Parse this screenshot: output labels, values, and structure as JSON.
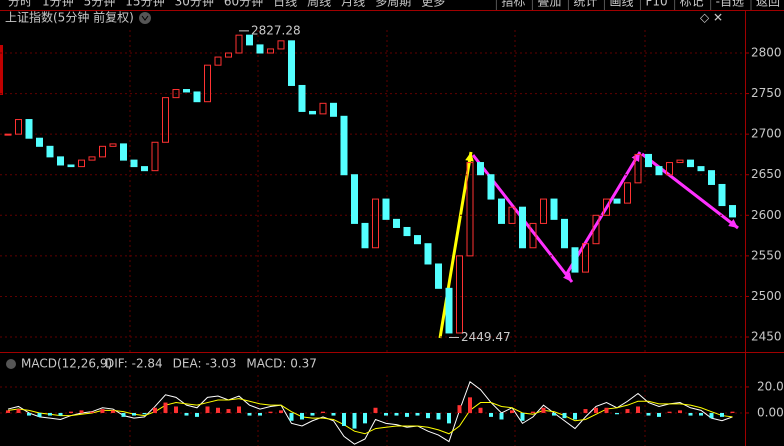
{
  "toolbar": {
    "tabs": [
      "分时",
      "1分钟",
      "5分钟",
      "15分钟",
      "30分钟",
      "60分钟",
      "日线",
      "周线",
      "月线",
      "多周期",
      "更多"
    ],
    "buttons": [
      "指标",
      "叠加",
      "统计",
      "画线",
      "F10",
      "标记",
      "-自选",
      "返回"
    ]
  },
  "chart_data": [
    {
      "type": "candlestick",
      "title": "上证指数(5分钟 前复权)",
      "up_color": "#ff3232",
      "down_color": "#54ffff",
      "grid": true,
      "ylim": [
        2434,
        2853
      ],
      "yticks": [
        2450,
        2500,
        2550,
        2600,
        2650,
        2700,
        2750,
        2800
      ],
      "annotations": [
        {
          "value": 2827.28,
          "label": "2827.28"
        },
        {
          "value": 2449.47,
          "label": "2449.47"
        }
      ],
      "values": [
        2700,
        2718,
        2695,
        2685,
        2672,
        2662,
        2660,
        2668,
        2672,
        2685,
        2688,
        2668,
        2660,
        2655,
        2690,
        2745,
        2755,
        2752,
        2740,
        2785,
        2795,
        2800,
        2822,
        2810,
        2800,
        2805,
        2815,
        2760,
        2728,
        2725,
        2738,
        2722,
        2650,
        2590,
        2560,
        2620,
        2595,
        2585,
        2575,
        2565,
        2540,
        2510,
        2455,
        2550,
        2665,
        2650,
        2620,
        2590,
        2610,
        2560,
        2590,
        2620,
        2595,
        2560,
        2530,
        2565,
        2600,
        2620,
        2615,
        2640,
        2675,
        2660,
        2650,
        2665,
        2668,
        2660,
        2655,
        2638,
        2612,
        2598
      ]
    },
    {
      "type": "macd",
      "title": "MACD(12,26,9)",
      "ylim": [
        -25.4,
        31.5
      ],
      "yticks": [
        {
          "value": 0,
          "label": "0.00"
        },
        {
          "value": 20,
          "label": "20.00"
        }
      ],
      "series": [
        {
          "name": "DIF: -2.84",
          "color": "#ffffff",
          "values": [
            3,
            5,
            0,
            -3,
            -4,
            -5,
            -2,
            0,
            1,
            4,
            3,
            -2,
            -4,
            -3,
            5,
            14,
            12,
            6,
            4,
            12,
            13,
            10,
            13,
            6,
            3,
            5,
            6,
            -8,
            -10,
            -6,
            -3,
            -6,
            -18,
            -24,
            -20,
            -5,
            -8,
            -9,
            -11,
            -10,
            -14,
            -17,
            -22,
            2,
            24,
            18,
            8,
            0,
            4,
            -8,
            -3,
            6,
            0,
            -6,
            -12,
            -3,
            5,
            8,
            4,
            9,
            15,
            8,
            5,
            7,
            8,
            4,
            2,
            -4,
            -6,
            -3
          ]
        },
        {
          "name": "DEA: -3.03",
          "color": "#ffff00",
          "values": [
            2,
            3,
            2,
            0,
            -1,
            -2,
            -2,
            -1,
            0,
            2,
            2,
            1,
            -1,
            -2,
            1,
            6,
            8,
            7,
            6,
            8,
            10,
            10,
            11,
            9,
            7,
            6,
            6,
            1,
            -3,
            -4,
            -4,
            -5,
            -9,
            -14,
            -16,
            -12,
            -11,
            -10,
            -10,
            -10,
            -11,
            -13,
            -16,
            -10,
            2,
            8,
            8,
            5,
            4,
            0,
            -1,
            2,
            1,
            -2,
            -6,
            -5,
            -1,
            3,
            4,
            6,
            9,
            9,
            7,
            7,
            7,
            6,
            4,
            1,
            -2,
            -3
          ]
        },
        {
          "name": "MACD: 0.37",
          "color": "#ff00ff",
          "up_color": "#ff3232",
          "down_color": "#54ffff",
          "values": [
            2,
            3,
            -2,
            -3,
            -2,
            -2,
            1,
            2,
            1,
            3,
            2,
            -3,
            -2,
            -1,
            4,
            8,
            5,
            -2,
            -3,
            5,
            4,
            3,
            5,
            -2,
            -2,
            1,
            2,
            -6,
            -5,
            -2,
            1,
            -2,
            -10,
            -12,
            -8,
            4,
            -2,
            -2,
            -3,
            -2,
            -4,
            -5,
            -8,
            6,
            12,
            4,
            -3,
            -5,
            2,
            -6,
            1,
            4,
            -2,
            -4,
            -5,
            3,
            4,
            4,
            -1,
            3,
            5,
            -2,
            -3,
            1,
            2,
            -2,
            -2,
            -4,
            -3,
            1
          ]
        }
      ]
    }
  ]
}
